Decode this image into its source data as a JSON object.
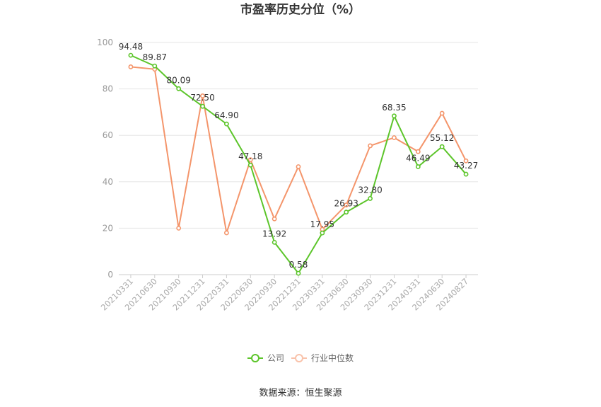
{
  "chart_data": {
    "type": "line",
    "title": "市盈率历史分位（%）",
    "ylim": [
      0,
      100
    ],
    "yticks": [
      0,
      20,
      40,
      60,
      80,
      100
    ],
    "categories": [
      "20210331",
      "20210630",
      "20210930",
      "20211231",
      "20220331",
      "20220630",
      "20220930",
      "20221231",
      "20230331",
      "20230630",
      "20230930",
      "20231231",
      "20240331",
      "20240630",
      "20240827"
    ],
    "series": [
      {
        "name": "公司",
        "color": "#5cc52a",
        "values": [
          94.48,
          89.87,
          80.09,
          72.5,
          64.9,
          47.18,
          13.92,
          0.58,
          17.95,
          26.93,
          32.8,
          68.35,
          46.49,
          55.12,
          43.27
        ],
        "labels": [
          "94.48",
          "89.87",
          "80.09",
          "72.50",
          "64.90",
          "47.18",
          "13.92",
          "0.58",
          "17.95",
          "26.93",
          "32.80",
          "68.35",
          "46.49",
          "55.12",
          "43.27"
        ]
      },
      {
        "name": "行业中位数",
        "color": "#f4956b",
        "values": [
          89.5,
          88.5,
          20.0,
          77.0,
          18.0,
          49.5,
          24.0,
          46.5,
          19.5,
          30.0,
          55.5,
          59.0,
          53.0,
          69.5,
          49.0
        ]
      }
    ],
    "grid": true,
    "legend_position": "bottom-center"
  },
  "footer": {
    "source": "数据来源：恒生聚源"
  }
}
